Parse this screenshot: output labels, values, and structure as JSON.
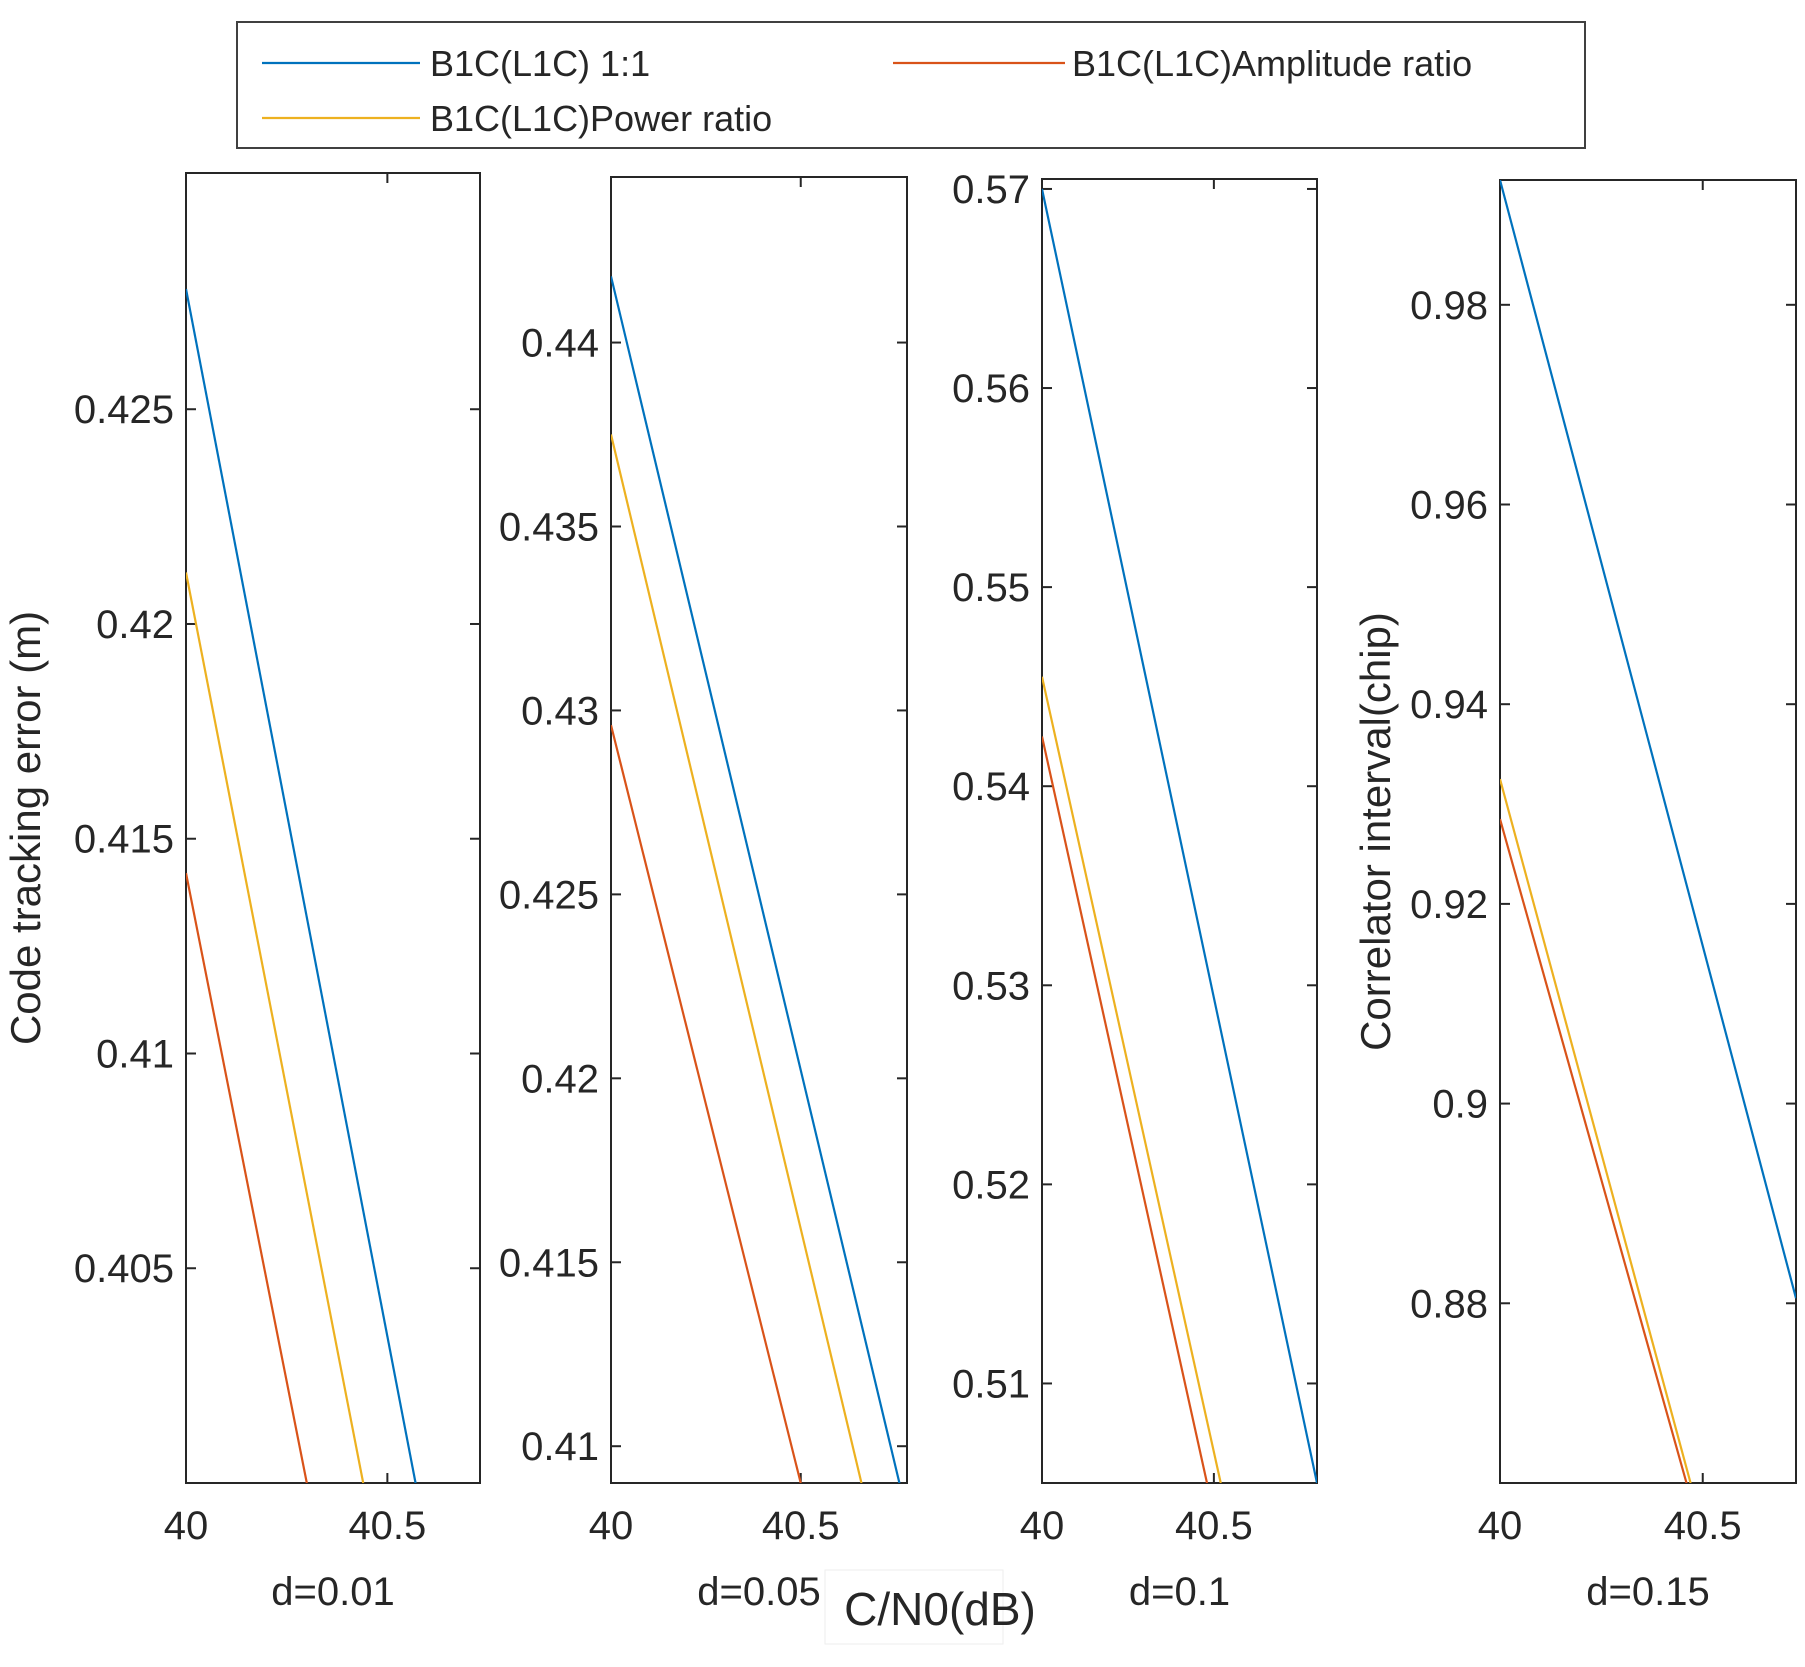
{
  "legend": {
    "entries": [
      {
        "label": "B1C(L1C) 1:1",
        "color": "#0072BD"
      },
      {
        "label": "B1C(L1C)Amplitude ratio",
        "color": "#D95319"
      },
      {
        "label": "B1C(L1C)Power ratio",
        "color": "#EDB120"
      }
    ]
  },
  "shared_xlabel": "C/N0(dB)",
  "chart_data": [
    {
      "type": "line",
      "panel_label": "d=0.01",
      "ylabel": "Code tracking error (m)",
      "xlim": [
        40,
        40.73
      ],
      "ylim": [
        0.4,
        0.4305
      ],
      "xticks": [
        40,
        40.5
      ],
      "xtick_labels": [
        "40",
        "40.5"
      ],
      "yticks": [
        0.405,
        0.41,
        0.415,
        0.42,
        0.425
      ],
      "ytick_labels": [
        "0.405",
        "0.41",
        "0.415",
        "0.42",
        "0.425"
      ],
      "series": [
        {
          "name": "B1C(L1C) 1:1",
          "x": [
            40,
            40.57
          ],
          "y": [
            0.4278,
            0.4
          ]
        },
        {
          "name": "B1C(L1C)Amplitude ratio",
          "x": [
            40,
            40.3
          ],
          "y": [
            0.4142,
            0.4
          ]
        },
        {
          "name": "B1C(L1C)Power ratio",
          "x": [
            40,
            40.44
          ],
          "y": [
            0.4212,
            0.4
          ]
        }
      ]
    },
    {
      "type": "line",
      "panel_label": "d=0.05",
      "ylabel": "",
      "xlim": [
        40,
        40.78
      ],
      "ylim": [
        0.409,
        0.4445
      ],
      "xticks": [
        40,
        40.5
      ],
      "xtick_labels": [
        "40",
        "40.5"
      ],
      "yticks": [
        0.41,
        0.415,
        0.42,
        0.425,
        0.43,
        0.435,
        0.44
      ],
      "ytick_labels": [
        "0.41",
        "0.415",
        "0.42",
        "0.425",
        "0.43",
        "0.435",
        "0.44"
      ],
      "series": [
        {
          "name": "B1C(L1C) 1:1",
          "x": [
            40,
            40.76
          ],
          "y": [
            0.4418,
            0.409
          ]
        },
        {
          "name": "B1C(L1C)Amplitude ratio",
          "x": [
            40,
            40.5
          ],
          "y": [
            0.4296,
            0.409
          ]
        },
        {
          "name": "B1C(L1C)Power ratio",
          "x": [
            40,
            40.66
          ],
          "y": [
            0.4375,
            0.409
          ]
        }
      ]
    },
    {
      "type": "line",
      "panel_label": "d=0.1",
      "ylabel": "",
      "xlim": [
        40,
        40.8
      ],
      "ylim": [
        0.505,
        0.5705
      ],
      "xticks": [
        40,
        40.5
      ],
      "xtick_labels": [
        "40",
        "40.5"
      ],
      "yticks": [
        0.51,
        0.52,
        0.53,
        0.54,
        0.55,
        0.56,
        0.57
      ],
      "ytick_labels": [
        "0.51",
        "0.52",
        "0.53",
        "0.54",
        "0.55",
        "0.56",
        "0.57"
      ],
      "series": [
        {
          "name": "B1C(L1C) 1:1",
          "x": [
            40,
            40.8
          ],
          "y": [
            0.57,
            0.505
          ]
        },
        {
          "name": "B1C(L1C)Amplitude ratio",
          "x": [
            40,
            40.48
          ],
          "y": [
            0.5425,
            0.505
          ]
        },
        {
          "name": "B1C(L1C)Power ratio",
          "x": [
            40,
            40.52
          ],
          "y": [
            0.5455,
            0.505
          ]
        }
      ]
    },
    {
      "type": "line",
      "panel_label": "d=0.15",
      "ylabel": "Correlator interval(chip)",
      "xlim": [
        40,
        40.73
      ],
      "ylim": [
        0.862,
        0.9925
      ],
      "xticks": [
        40,
        40.5
      ],
      "xtick_labels": [
        "40",
        "40.5"
      ],
      "yticks": [
        0.88,
        0.9,
        0.92,
        0.94,
        0.96,
        0.98
      ],
      "ytick_labels": [
        "0.88",
        "0.9",
        "0.92",
        "0.94",
        "0.96",
        "0.98"
      ],
      "series": [
        {
          "name": "B1C(L1C) 1:1",
          "x": [
            40,
            40.73
          ],
          "y": [
            0.9925,
            0.8805
          ]
        },
        {
          "name": "B1C(L1C)Amplitude ratio",
          "x": [
            40,
            40.46
          ],
          "y": [
            0.9285,
            0.862
          ]
        },
        {
          "name": "B1C(L1C)Power ratio",
          "x": [
            40,
            40.47
          ],
          "y": [
            0.9325,
            0.862
          ]
        }
      ]
    }
  ]
}
